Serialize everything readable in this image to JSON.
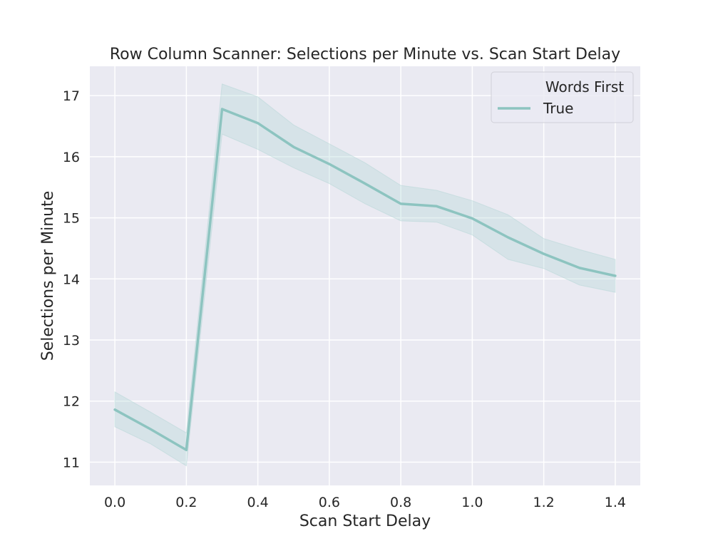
{
  "chart_data": {
    "type": "line",
    "title": "Row Column Scanner: Selections per Minute vs. Scan Start Delay",
    "xlabel": "Scan Start Delay",
    "ylabel": "Selections per Minute",
    "xlim": [
      -0.07,
      1.47
    ],
    "ylim": [
      10.62,
      17.48
    ],
    "xticks": [
      0.0,
      0.2,
      0.4,
      0.6,
      0.8,
      1.0,
      1.2,
      1.4
    ],
    "xtick_labels": [
      "0.0",
      "0.2",
      "0.4",
      "0.6",
      "0.8",
      "1.0",
      "1.2",
      "1.4"
    ],
    "yticks": [
      11,
      12,
      13,
      14,
      15,
      16,
      17
    ],
    "ytick_labels": [
      "11",
      "12",
      "13",
      "14",
      "15",
      "16",
      "17"
    ],
    "grid": true,
    "legend": {
      "title": "Words First",
      "placement": "top-right",
      "entries": [
        "True"
      ]
    },
    "colors": {
      "line": "#8dc4c0",
      "band": "#b3d6d6",
      "background": "#eaeaf2",
      "grid": "#ffffff"
    },
    "series": [
      {
        "name": "True",
        "x": [
          0.0,
          0.1,
          0.2,
          0.3,
          0.4,
          0.5,
          0.6,
          0.7,
          0.8,
          0.9,
          1.0,
          1.1,
          1.2,
          1.3,
          1.4
        ],
        "y": [
          11.86,
          11.54,
          11.2,
          16.78,
          16.55,
          16.16,
          15.88,
          15.56,
          15.23,
          15.19,
          14.99,
          14.68,
          14.41,
          14.18,
          14.05
        ],
        "ci_lower": [
          11.58,
          11.3,
          10.94,
          16.37,
          16.12,
          15.82,
          15.56,
          15.23,
          14.95,
          14.93,
          14.72,
          14.32,
          14.17,
          13.9,
          13.78
        ],
        "ci_upper": [
          12.15,
          11.82,
          11.48,
          17.19,
          16.98,
          16.52,
          16.21,
          15.9,
          15.53,
          15.45,
          15.28,
          15.05,
          14.66,
          14.48,
          14.32
        ]
      }
    ]
  }
}
